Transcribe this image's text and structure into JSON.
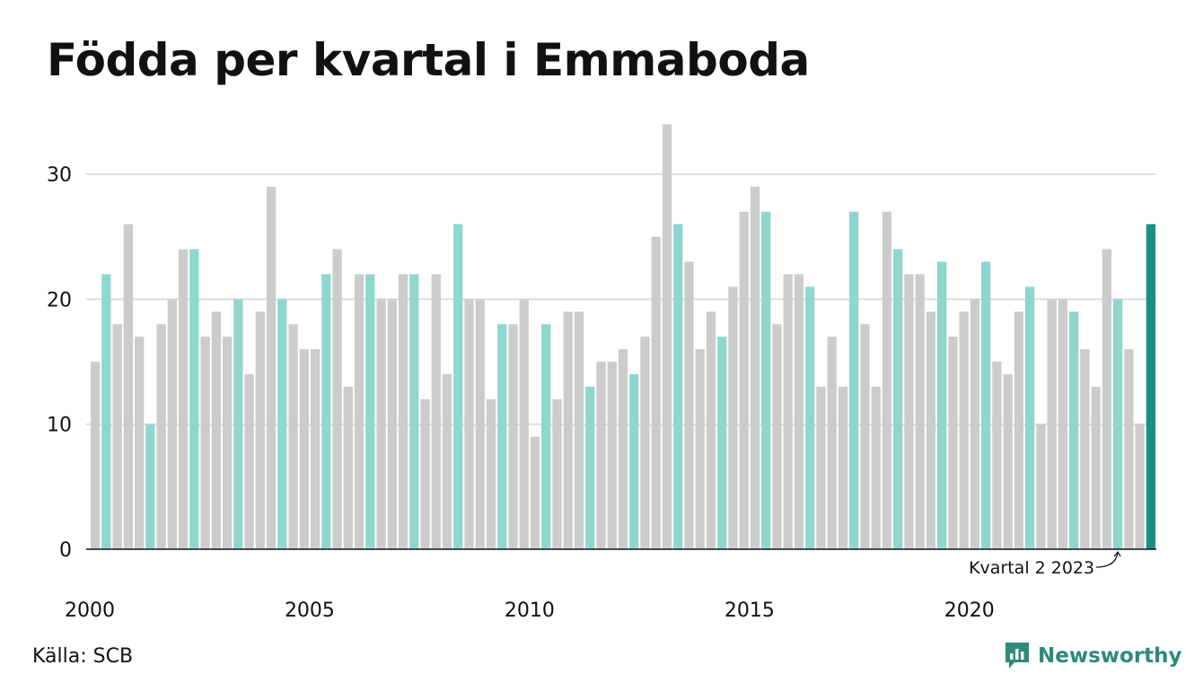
{
  "title": "Födda per kvartal i Emmaboda",
  "source": "Källa: SCB",
  "brand": "Newsworthy",
  "colors": {
    "base": "#cccccc",
    "highlight": "#8fd6ce",
    "latest": "#1a9084",
    "grid": "#dddddd",
    "axis": "#111111"
  },
  "chart_data": {
    "type": "bar",
    "x_start_year": 2000,
    "x_start_quarter": 1,
    "ylim": [
      0,
      34
    ],
    "yticks": [
      0,
      10,
      20,
      30
    ],
    "xticks": [
      "2000",
      "2005",
      "2010",
      "2015",
      "2020"
    ],
    "highlight_quarter": 2,
    "values": [
      15,
      22,
      18,
      26,
      17,
      10,
      18,
      20,
      24,
      24,
      17,
      19,
      17,
      20,
      14,
      19,
      29,
      20,
      18,
      16,
      16,
      22,
      24,
      13,
      22,
      22,
      20,
      20,
      22,
      22,
      12,
      22,
      14,
      26,
      20,
      20,
      12,
      18,
      18,
      20,
      9,
      18,
      12,
      19,
      19,
      13,
      15,
      15,
      16,
      14,
      17,
      25,
      34,
      26,
      23,
      16,
      19,
      17,
      21,
      27,
      29,
      27,
      18,
      22,
      22,
      21,
      13,
      17,
      13,
      27,
      18,
      13,
      27,
      24,
      22,
      22,
      19,
      23,
      17,
      19,
      20,
      23,
      15,
      14,
      19,
      21,
      10,
      20,
      20,
      19,
      16,
      13,
      24,
      20,
      16,
      10,
      26
    ],
    "annotation": {
      "text": "Kvartal 2 2023",
      "index": 93
    }
  }
}
